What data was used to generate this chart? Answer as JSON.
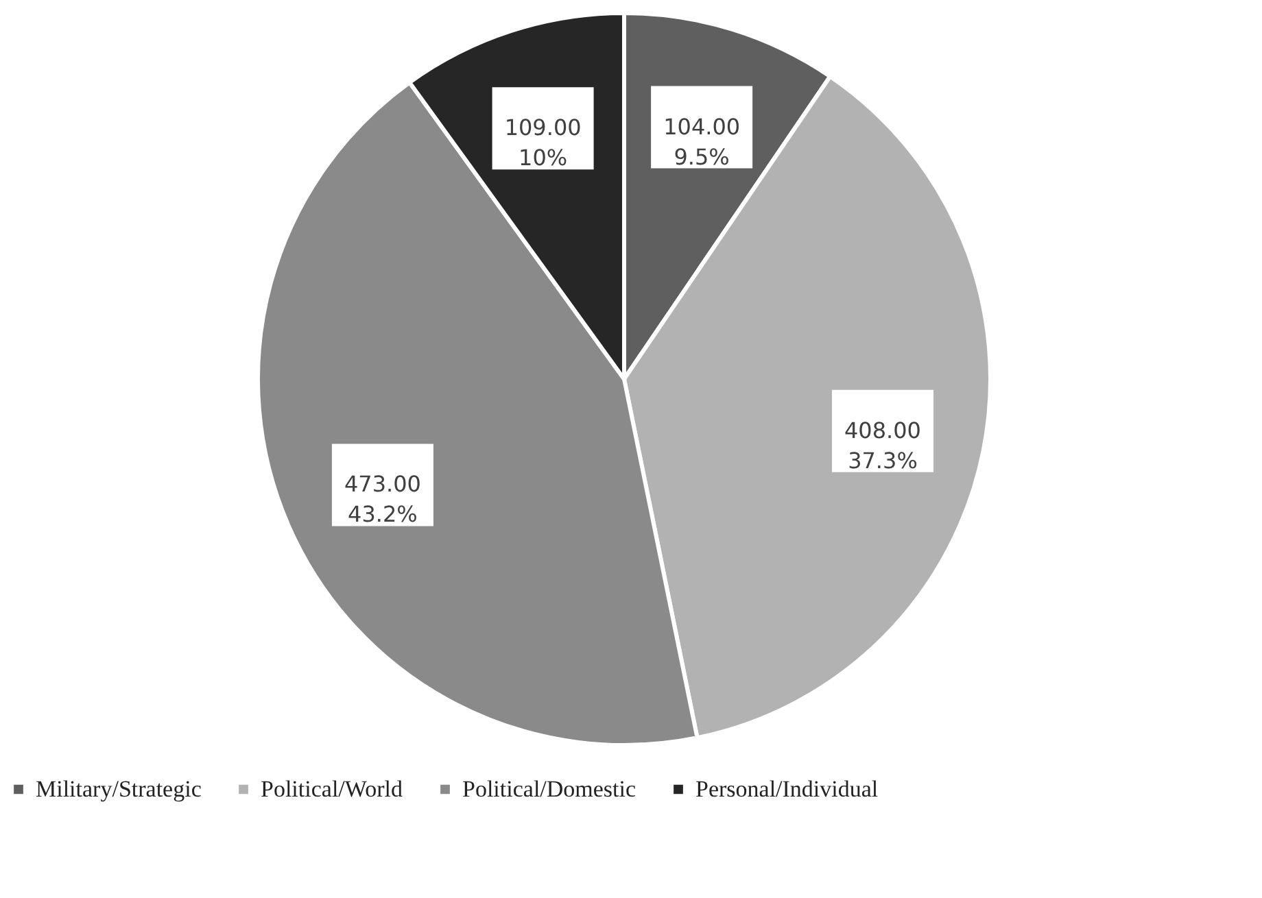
{
  "chart_data": {
    "type": "pie",
    "categories": [
      "Military/Strategic",
      "Political/World",
      "Political/Domestic",
      "Personal/Individual"
    ],
    "values": [
      104,
      408,
      473,
      109
    ],
    "colors": [
      "#5f5f5f",
      "#b2b2b2",
      "#8a8a8a",
      "#262626"
    ],
    "value_labels": [
      "104.00\n9.5%",
      "408.00\n37.3%",
      "473.00\n43.2%",
      "109.00\n10%"
    ],
    "legend": "bottom"
  }
}
